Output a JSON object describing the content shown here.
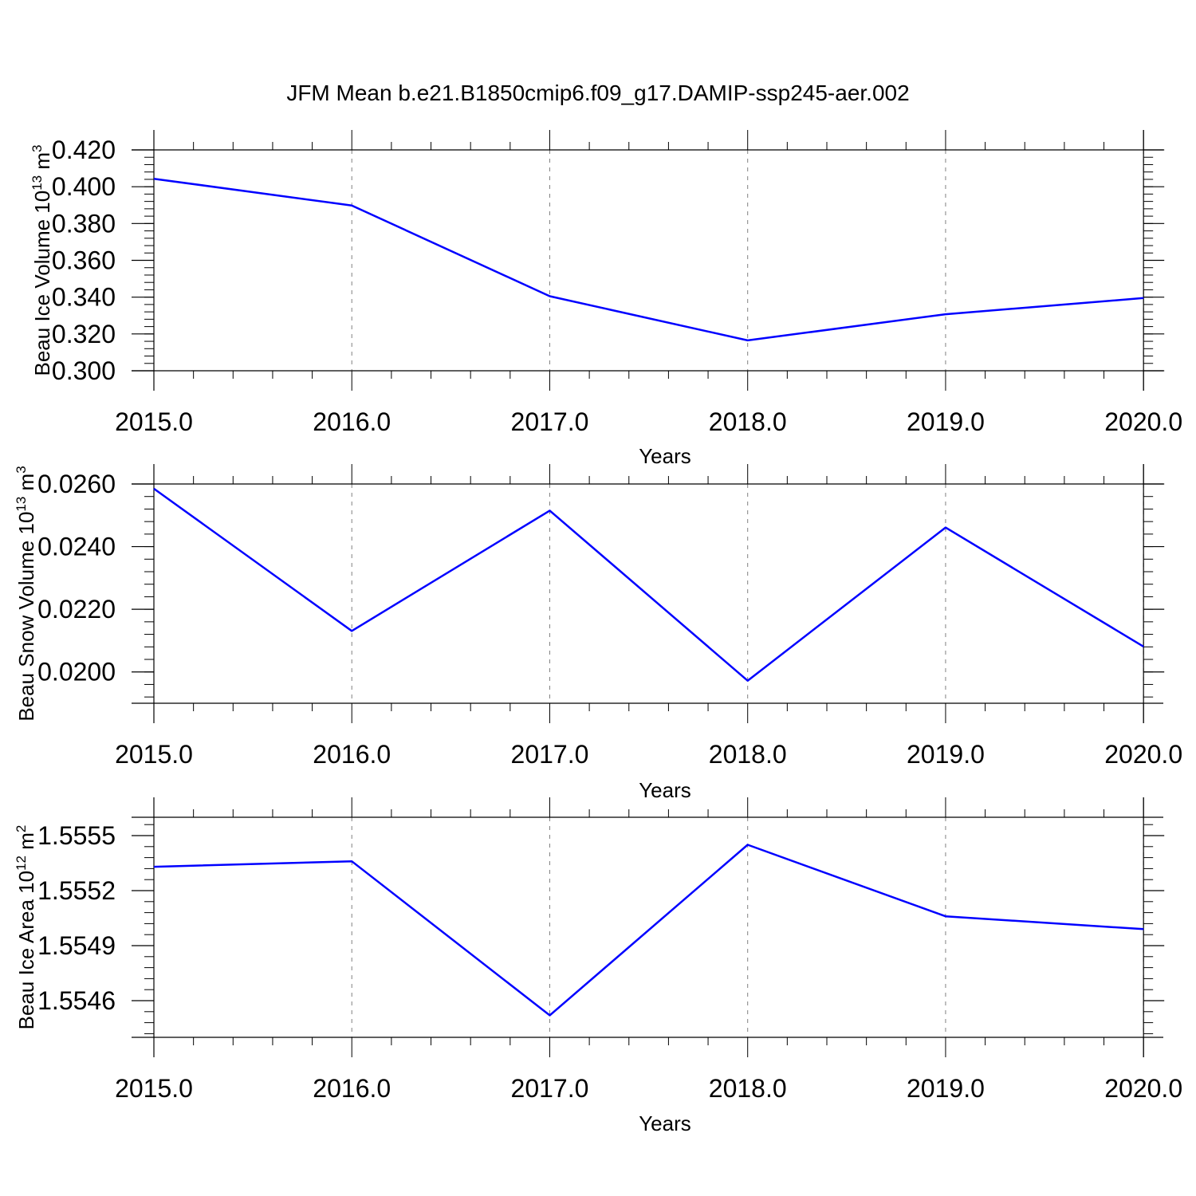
{
  "title": "JFM Mean b.e21.B1850cmip6.f09_g17.DAMIP-ssp245-aer.002",
  "colors": {
    "line": "#0000ff",
    "axes": "#000000",
    "grid": "#808080"
  },
  "chart_data": [
    {
      "type": "line",
      "ylabel": {
        "text": "Beau Ice Volume 10",
        "exp": "13",
        "unit": "m",
        "unit_exp": "3"
      },
      "xlabel": "Years",
      "x": [
        2015,
        2016,
        2017,
        2018,
        2019,
        2020
      ],
      "x_tick_labels": [
        "2015.0",
        "2016.0",
        "2017.0",
        "2018.0",
        "2019.0",
        "2020.0"
      ],
      "xlim": [
        2015,
        2020.1
      ],
      "ylim": [
        0.3,
        0.42
      ],
      "y_ticks": [
        0.3,
        0.32,
        0.34,
        0.36,
        0.38,
        0.4,
        0.42
      ],
      "y_tick_labels": [
        "0.300",
        "0.320",
        "0.340",
        "0.360",
        "0.380",
        "0.400",
        "0.420"
      ],
      "y_minor_step": 0.004,
      "top_margin_frac": 0.09,
      "series": [
        {
          "values": [
            0.4043,
            0.3898,
            0.3405,
            0.3165,
            0.3307,
            0.3395
          ]
        }
      ],
      "grid": "vertical-dashed"
    },
    {
      "type": "line",
      "ylabel": {
        "text": "Beau Snow Volume 10",
        "exp": "13",
        "unit": "m",
        "unit_exp": "3"
      },
      "xlabel": "Years",
      "x": [
        2015,
        2016,
        2017,
        2018,
        2019,
        2020
      ],
      "x_tick_labels": [
        "2015.0",
        "2016.0",
        "2017.0",
        "2018.0",
        "2019.0",
        "2020.0"
      ],
      "xlim": [
        2015,
        2020.1
      ],
      "ylim": [
        0.019,
        0.026
      ],
      "y_ticks": [
        0.02,
        0.022,
        0.024,
        0.026
      ],
      "y_tick_labels": [
        "0.0200",
        "0.0220",
        "0.0240",
        "0.0260"
      ],
      "y_minor_step": 0.0004,
      "top_margin_frac": 0.09,
      "series": [
        {
          "values": [
            0.02585,
            0.02131,
            0.02515,
            0.01972,
            0.02461,
            0.02081
          ]
        }
      ],
      "grid": "vertical-dashed"
    },
    {
      "type": "line",
      "ylabel": {
        "text": "Beau Ice Area 10",
        "exp": "12",
        "unit": "m",
        "unit_exp": "2"
      },
      "xlabel": "Years",
      "x": [
        2015,
        2016,
        2017,
        2018,
        2019,
        2020
      ],
      "x_tick_labels": [
        "2015.0",
        "2016.0",
        "2017.0",
        "2018.0",
        "2019.0",
        "2020.0"
      ],
      "xlim": [
        2015,
        2020.1
      ],
      "ylim": [
        1.5544,
        1.5556
      ],
      "y_ticks": [
        1.5546,
        1.5549,
        1.5552,
        1.5555
      ],
      "y_tick_labels": [
        "1.5546",
        "1.5549",
        "1.5552",
        "1.5555"
      ],
      "y_minor_step": 6e-05,
      "top_margin_frac": 0.09,
      "series": [
        {
          "values": [
            1.55533,
            1.55536,
            1.55452,
            1.55545,
            1.55506,
            1.55499
          ]
        }
      ],
      "grid": "vertical-dashed"
    }
  ]
}
